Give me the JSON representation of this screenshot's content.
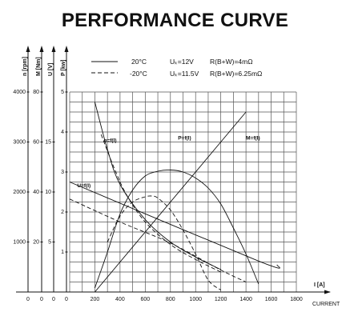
{
  "title": "PERFORMANCE CURVE",
  "legend": [
    {
      "style": "solid",
      "temp": "20°C",
      "voltage": "Uₖ=12V",
      "resistance": "R(B+W)=4mΩ"
    },
    {
      "style": "dashed",
      "temp": "-20°C",
      "voltage": "Uₖ=11.5V",
      "resistance": "R(B+W)=6.25mΩ"
    }
  ],
  "chart_data": {
    "type": "line",
    "title": "PERFORMANCE CURVE",
    "x_axis": {
      "label": "I [A]",
      "sublabel": "CURRENT",
      "range": [
        0,
        1800
      ],
      "ticks": [
        0,
        200,
        400,
        600,
        800,
        1000,
        1200,
        1400,
        1600,
        1800
      ]
    },
    "y_axes": [
      {
        "label": "n [rpm]",
        "range": [
          0,
          4000
        ],
        "ticks": [
          1000,
          2000,
          3000,
          4000
        ]
      },
      {
        "label": "M [Nm]",
        "range": [
          0,
          80
        ],
        "ticks": [
          20,
          40,
          60,
          80
        ]
      },
      {
        "label": "U [V]",
        "range": [
          0,
          20
        ],
        "ticks": [
          5,
          10,
          15
        ]
      },
      {
        "label": "P [kw]",
        "range": [
          0,
          5
        ],
        "ticks": [
          1,
          2,
          3,
          4,
          5
        ]
      }
    ],
    "grid": true,
    "curve_labels": [
      "n=f(I)",
      "P=f(I)",
      "M=f(I)",
      "U=f(I)"
    ],
    "series": [
      {
        "name": "n=f(I)",
        "style": "solid",
        "axis": "n [rpm]",
        "x": [
          200,
          300,
          400,
          600,
          800,
          1000,
          1200
        ],
        "y": [
          3800,
          2850,
          2150,
          1450,
          1000,
          700,
          450
        ]
      },
      {
        "name": "n=f(I)",
        "style": "dashed",
        "axis": "n [rpm]",
        "x": [
          250,
          350,
          450,
          600,
          800,
          1000,
          1200
        ],
        "y": [
          3150,
          2500,
          1950,
          1400,
          950,
          650,
          400
        ]
      },
      {
        "name": "P=f(I)",
        "style": "solid",
        "axis": "P [kw]",
        "x": [
          200,
          300,
          400,
          500,
          600,
          700,
          800,
          900,
          1000,
          1100,
          1200,
          1300,
          1400,
          1500
        ],
        "y": [
          0.1,
          1.0,
          1.95,
          2.55,
          2.9,
          3.02,
          3.05,
          3.0,
          2.85,
          2.6,
          2.2,
          1.6,
          0.95,
          0.2
        ]
      },
      {
        "name": "P=f(I)",
        "style": "dashed",
        "axis": "P [kw]",
        "x": [
          300,
          400,
          500,
          600,
          650,
          700,
          800,
          900,
          1000,
          1100,
          1200
        ],
        "y": [
          1.25,
          1.9,
          2.25,
          2.38,
          2.4,
          2.35,
          2.05,
          1.55,
          0.95,
          0.3,
          0.05
        ]
      },
      {
        "name": "M=f(I)",
        "style": "solid",
        "axis": "M [Nm]",
        "x": [
          200,
          1400
        ],
        "y": [
          0,
          72
        ]
      },
      {
        "name": "U=f(I)",
        "style": "solid",
        "axis": "U [V]",
        "x": [
          0,
          1500,
          1650
        ],
        "y": [
          11,
          3.1,
          2.7
        ]
      },
      {
        "name": "U=f(I)",
        "style": "dashed",
        "axis": "U [V]",
        "x": [
          0,
          400,
          800,
          1200,
          1400
        ],
        "y": [
          9.3,
          7.0,
          4.9,
          2.2,
          1.0
        ]
      }
    ]
  }
}
